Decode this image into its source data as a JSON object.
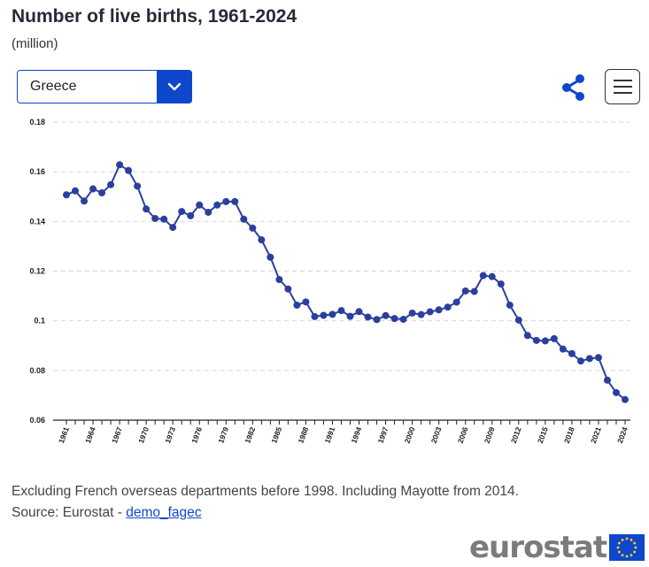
{
  "header": {
    "title": "Number of live births, 1961-2024",
    "unit": "(million)"
  },
  "selector": {
    "value": "Greece"
  },
  "icons": {
    "share": "share-icon",
    "menu": "hamburger-menu-icon",
    "dropdown": "chevron-down-icon"
  },
  "colors": {
    "accent": "#0e47cb",
    "series": "#2b3f9e",
    "logo_flag": "#0e47cb",
    "logo_stars": "#ffd617"
  },
  "footer": {
    "note": "Excluding French overseas departments before 1998. Including Mayotte from 2014.",
    "source_prefix": "Source: Eurostat - ",
    "source_link": "demo_fagec",
    "logo_text": "eurostat"
  },
  "chart_data": {
    "type": "line",
    "title": "Number of live births, 1961-2024",
    "xlabel": "",
    "ylabel": "",
    "ylim": [
      0.06,
      0.18
    ],
    "yticks": [
      0.06,
      0.08,
      0.1,
      0.12,
      0.14,
      0.16,
      0.18
    ],
    "ytick_labels": [
      "0.06",
      "0.08",
      "0.1",
      "0.12",
      "0.14",
      "0.16",
      "0.18"
    ],
    "xlim": [
      1961,
      2024
    ],
    "xtick_labels": [
      "1961",
      "1964",
      "1967",
      "1970",
      "1973",
      "1976",
      "1979",
      "1982",
      "1985",
      "1988",
      "1991",
      "1994",
      "1997",
      "2000",
      "2003",
      "2006",
      "2009",
      "2012",
      "2015",
      "2018",
      "2021",
      "2024"
    ],
    "grid": true,
    "legend": "none",
    "series": [
      {
        "x": [
          1961,
          1962,
          1963,
          1964,
          1965,
          1966,
          1967,
          1968,
          1969,
          1970,
          1971,
          1972,
          1973,
          1974,
          1975,
          1976,
          1977,
          1978,
          1979,
          1980,
          1981,
          1982,
          1983,
          1984,
          1985,
          1986,
          1987,
          1988,
          1989,
          1990,
          1991,
          1992,
          1993,
          1994,
          1995,
          1996,
          1997,
          1998,
          1999,
          2000,
          2001,
          2002,
          2003,
          2004,
          2005,
          2006,
          2007,
          2008,
          2009,
          2010,
          2011,
          2012,
          2013,
          2014,
          2015,
          2016,
          2017,
          2018,
          2019,
          2020,
          2021,
          2022,
          2023,
          2024
        ],
        "values": [
          0.1507,
          0.1523,
          0.1482,
          0.1531,
          0.1515,
          0.1548,
          0.1628,
          0.1605,
          0.1542,
          0.145,
          0.1412,
          0.1409,
          0.1376,
          0.144,
          0.1423,
          0.1466,
          0.1437,
          0.1466,
          0.148,
          0.148,
          0.1409,
          0.1373,
          0.1326,
          0.1256,
          0.1166,
          0.1128,
          0.1063,
          0.1076,
          0.1017,
          0.1022,
          0.1026,
          0.1041,
          0.1018,
          0.1037,
          0.1015,
          0.1005,
          0.1021,
          0.1009,
          0.1006,
          0.1031,
          0.1025,
          0.1036,
          0.1044,
          0.1055,
          0.1075,
          0.112,
          0.1118,
          0.1182,
          0.1178,
          0.1148,
          0.1063,
          0.1003,
          0.0941,
          0.0921,
          0.0919,
          0.0928,
          0.0886,
          0.0868,
          0.0838,
          0.0848,
          0.0852,
          0.0761,
          0.0711,
          0.0683
        ]
      }
    ]
  }
}
